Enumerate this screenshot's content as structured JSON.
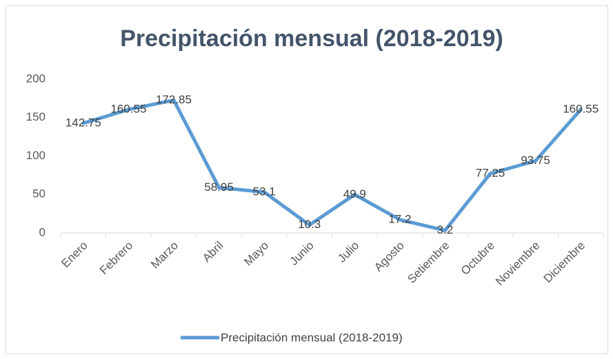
{
  "chart_data": {
    "type": "line",
    "title": "Precipitación mensual (2018-2019)",
    "categories": [
      "Enero",
      "Febrero",
      "Marzo",
      "Abril",
      "Mayo",
      "Junio",
      "Julio",
      "Agosto",
      "Setiembre",
      "Octubre",
      "Noviembre",
      "Diciembre"
    ],
    "series": [
      {
        "name": "Precipitación mensual (2018-2019)",
        "color": "#5b9bd5",
        "values": [
          142.75,
          160.55,
          172.85,
          58.95,
          53.1,
          10.3,
          49.9,
          17.2,
          3.2,
          77.25,
          93.75,
          160.55
        ]
      }
    ],
    "ylim": [
      0,
      200
    ],
    "yticks": [
      0,
      50,
      100,
      150,
      200
    ],
    "grid": false,
    "legend": "bottom"
  }
}
